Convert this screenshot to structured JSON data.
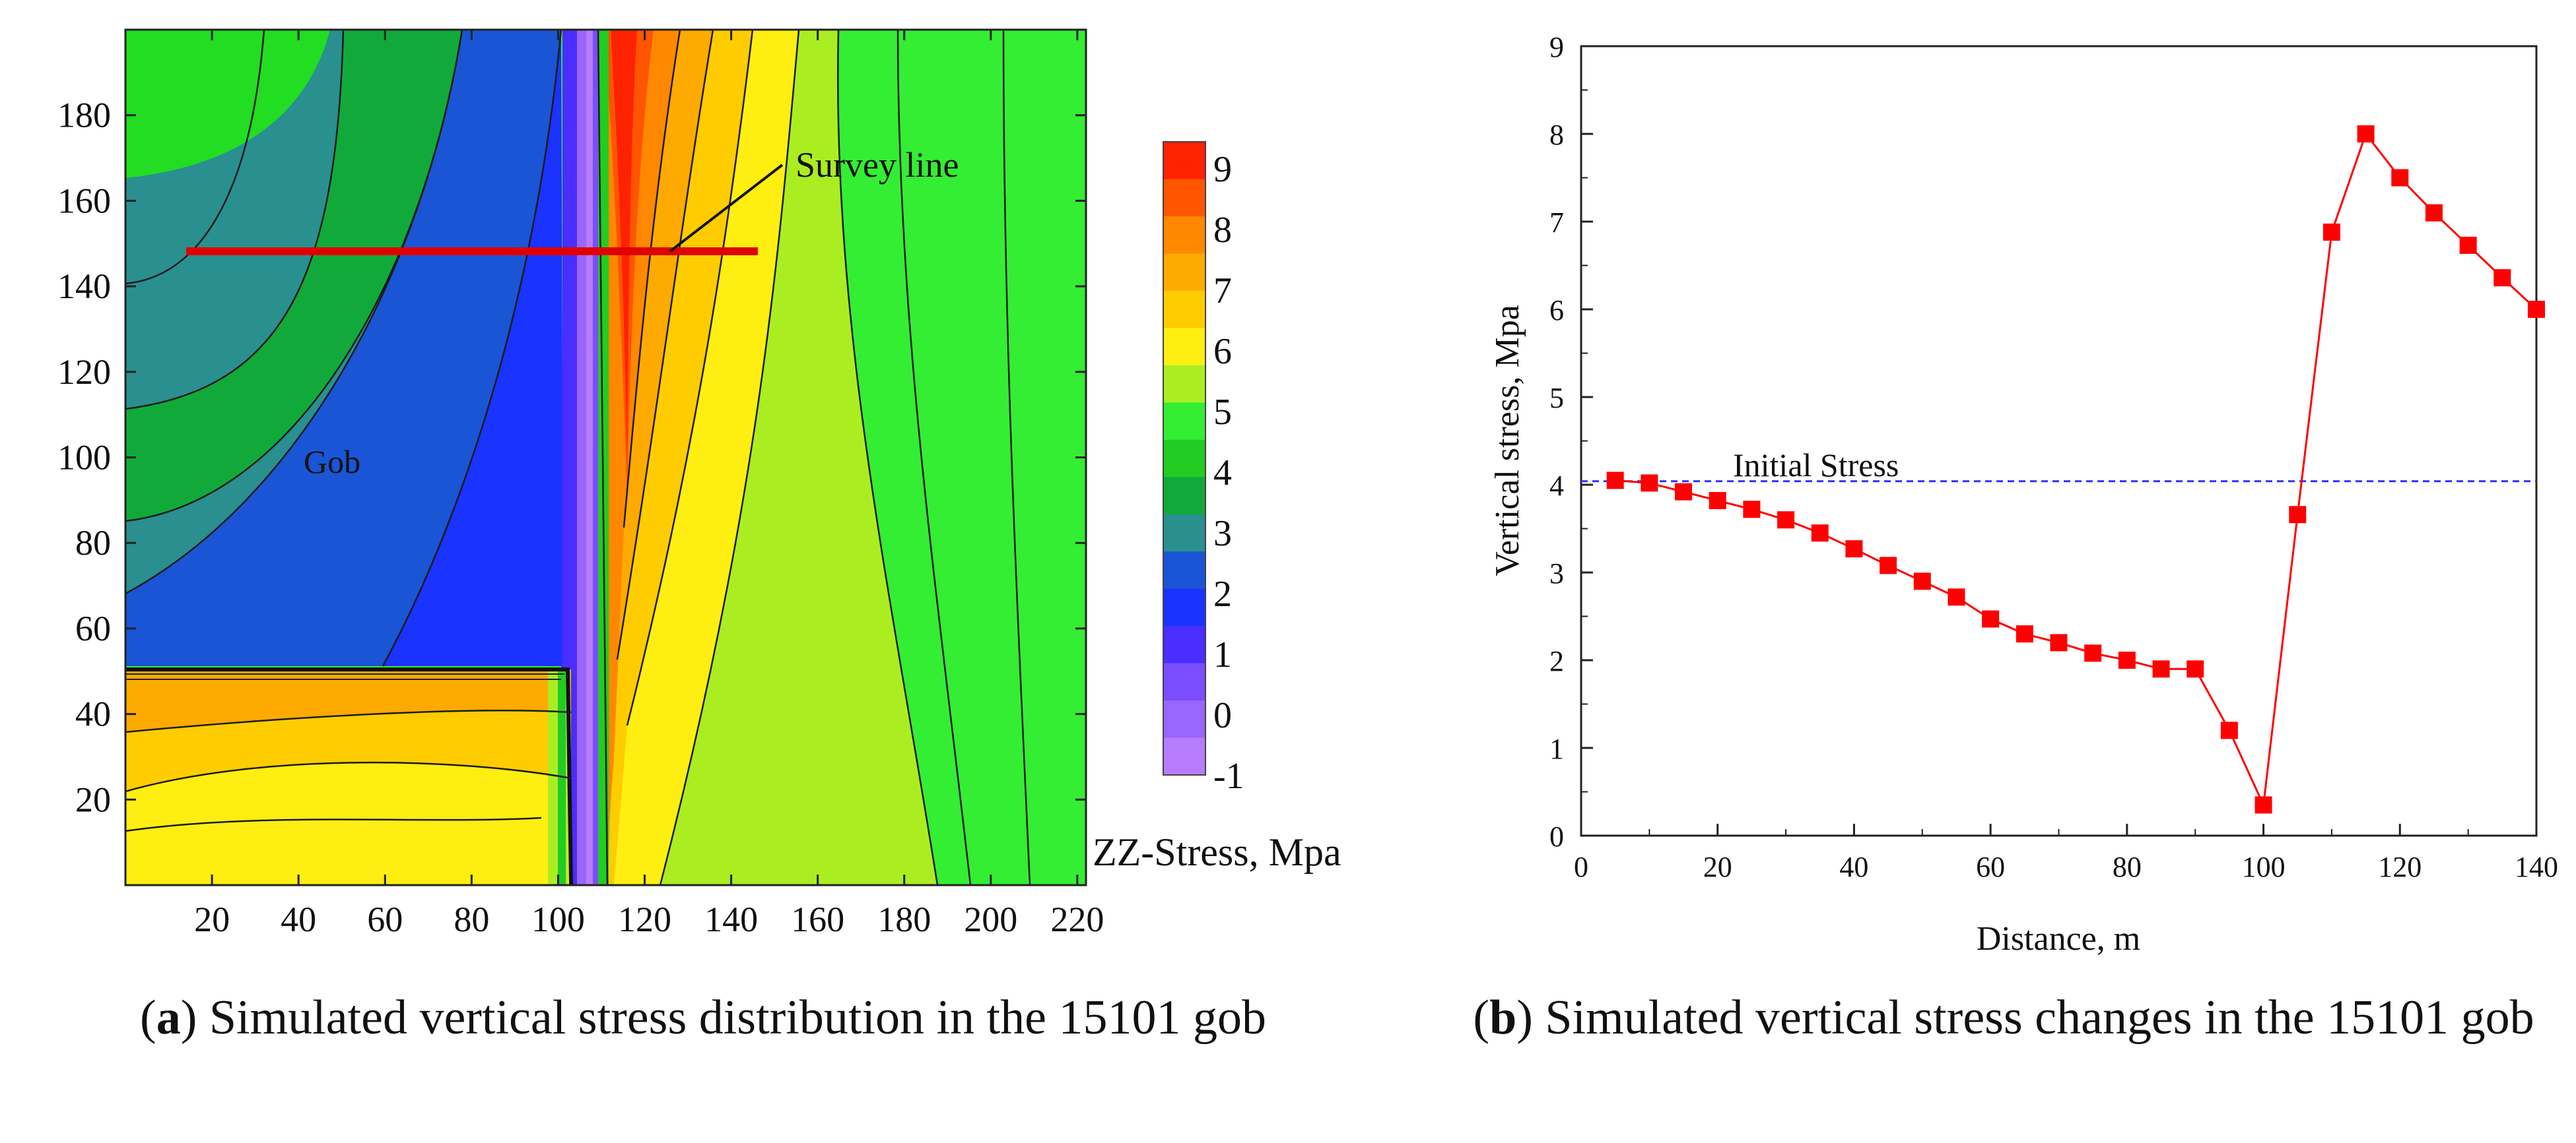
{
  "captions": {
    "a": {
      "letter": "a",
      "text": " Simulated vertical stress distribution in the 15101 gob"
    },
    "b": {
      "letter": "b",
      "text": " Simulated vertical stress changes in the 15101 gob"
    }
  },
  "colors": {
    "red_line": "#e00000",
    "marker": "#ff0000",
    "initial_line": "#3333ff",
    "legend": [
      "#b77cff",
      "#9966ff",
      "#7a4dff",
      "#4a2dff",
      "#1a33ff",
      "#1a55d6",
      "#2a8f8f",
      "#11aa3a",
      "#22cc22",
      "#33ee33",
      "#aaee22",
      "#ffee11",
      "#ffcc00",
      "#ffaa00",
      "#ff8800",
      "#ff5500",
      "#ff2200"
    ]
  },
  "chart_data": [
    {
      "type": "heatmap",
      "title": "Simulated vertical stress distribution in the 15101 gob",
      "x_ticks": [
        "20",
        "40",
        "60",
        "80",
        "100",
        "120",
        "140",
        "160",
        "180",
        "200",
        "220"
      ],
      "y_ticks": [
        "20",
        "40",
        "60",
        "80",
        "100",
        "120",
        "140",
        "160",
        "180"
      ],
      "xlim": [
        0,
        222
      ],
      "ylim": [
        0,
        200
      ],
      "colorbar_label": "ZZ-Stress, Mpa",
      "colorbar_ticks": [
        "9",
        "8",
        "7",
        "6",
        "5",
        "4",
        "3",
        "2",
        "1",
        "0",
        "-1"
      ],
      "annotations": {
        "survey_line": "Survey line",
        "gob": "Gob"
      },
      "survey_line_x": [
        15,
        147
      ],
      "survey_line_y": 148
    },
    {
      "type": "line",
      "xlabel": "Distance, m",
      "ylabel": "Vertical stress, Mpa",
      "xlim": [
        0,
        140
      ],
      "ylim": [
        0,
        9
      ],
      "x_ticks": [
        "0",
        "20",
        "40",
        "60",
        "80",
        "100",
        "120",
        "140"
      ],
      "y_ticks": [
        "0",
        "1",
        "2",
        "3",
        "4",
        "5",
        "6",
        "7",
        "8",
        "9"
      ],
      "initial_stress_label": "Initial  Stress",
      "initial_stress": 4.04,
      "series": [
        {
          "name": "Vertical stress",
          "x": [
            5,
            10,
            15,
            20,
            25,
            30,
            35,
            40,
            45,
            50,
            55,
            60,
            65,
            70,
            75,
            80,
            85,
            90,
            95,
            100,
            105,
            110,
            115,
            120,
            125,
            130,
            135,
            140
          ],
          "values": [
            4.05,
            4.02,
            3.92,
            3.82,
            3.72,
            3.6,
            3.45,
            3.27,
            3.08,
            2.9,
            2.72,
            2.47,
            2.3,
            2.2,
            2.08,
            2.0,
            1.9,
            1.9,
            1.2,
            0.35,
            3.66,
            6.88,
            8.0,
            7.5,
            7.1,
            6.73,
            6.36,
            6.0
          ]
        }
      ]
    }
  ]
}
